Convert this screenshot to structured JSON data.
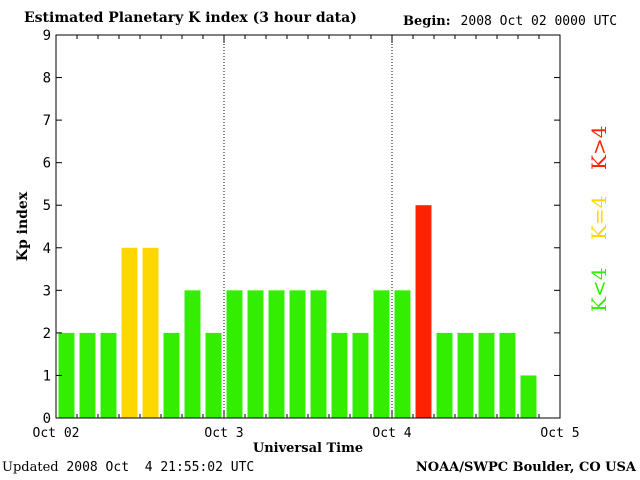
{
  "header": {
    "title": "Estimated Planetary K index (3 hour data)",
    "begin_label": "Begin:",
    "begin_value": "2008 Oct 02 0000 UTC"
  },
  "footer": {
    "updated_label": "Updated",
    "updated_value": "2008 Oct  4 21:55:02 UTC",
    "credit": "NOAA/SWPC Boulder, CO USA"
  },
  "legend": {
    "low": {
      "label": "K<4",
      "color": "#33ee00"
    },
    "mid": {
      "label": "K=4",
      "color": "#ffd700"
    },
    "high": {
      "label": "K>4",
      "color": "#ff2200"
    }
  },
  "chart_data": {
    "type": "bar",
    "title": "Estimated Planetary K index (3 hour data)",
    "xlabel": "Universal Time",
    "ylabel": "Kp index",
    "ylim": [
      0,
      9
    ],
    "yticks": [
      0,
      1,
      2,
      3,
      4,
      5,
      6,
      7,
      8,
      9
    ],
    "xticks": [
      "Oct 02",
      "Oct 3",
      "Oct 4",
      "Oct 5"
    ],
    "bars_per_day": 8,
    "days_shown": 3,
    "grid": "dotted vertical day separators",
    "values": [
      2,
      2,
      2,
      4,
      4,
      2,
      3,
      2,
      3,
      3,
      3,
      3,
      3,
      2,
      2,
      3,
      3,
      5,
      2,
      2,
      2,
      2,
      1
    ],
    "colors": {
      "low": "#33ee00",
      "mid": "#ffd700",
      "high": "#ff2200"
    }
  }
}
